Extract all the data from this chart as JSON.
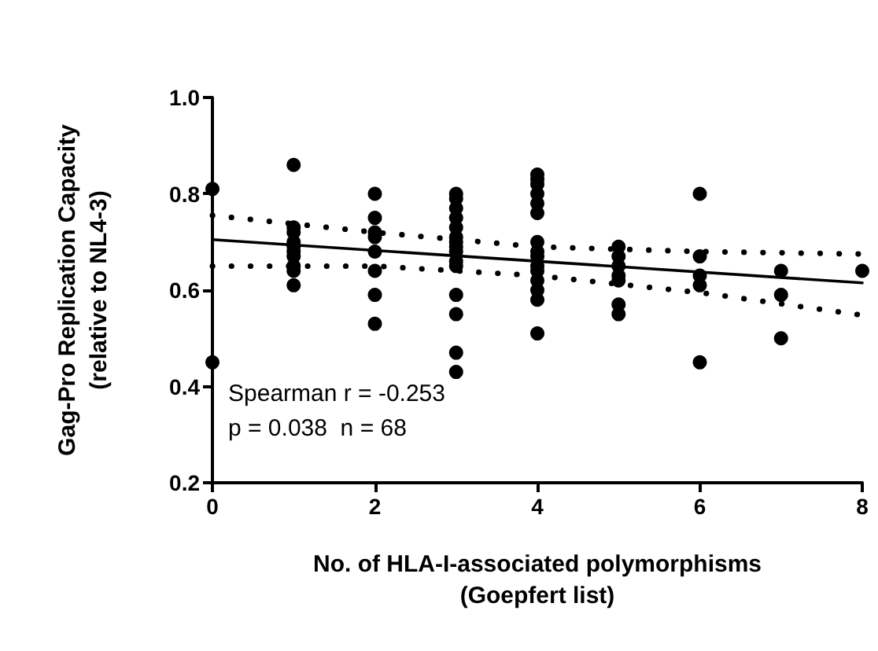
{
  "chart_data": {
    "type": "scatter",
    "xlabel": "No. of HLA-I-associated polymorphisms\n(Goepfert list)",
    "ylabel": "Gag-Pro Replication Capacity\n(relative to NL4-3)",
    "xlim": [
      0,
      8
    ],
    "xticks": [
      0,
      2,
      4,
      6,
      8
    ],
    "ylim": [
      0.2,
      1.0
    ],
    "yticks": [
      {
        "value": 0.2,
        "label": "0.2"
      },
      {
        "value": 0.4,
        "label": "0.4"
      },
      {
        "value": 0.6,
        "label": "0.6"
      },
      {
        "value": 0.8,
        "label": "0.8"
      },
      {
        "value": 1.0,
        "label": "1.0"
      }
    ],
    "grid": false,
    "annotations": [
      "Spearman r = -0.253",
      "p = 0.038  n = 68"
    ],
    "series": [
      {
        "color": "#000000",
        "marker": "circle",
        "x": [
          0,
          0,
          1,
          1,
          1,
          1,
          1,
          1,
          1,
          1,
          1,
          1,
          2,
          2,
          2,
          2,
          2,
          2,
          2,
          2,
          3,
          3,
          3,
          3,
          3,
          3,
          3,
          3,
          3,
          3,
          3,
          3,
          3,
          3,
          3,
          4,
          4,
          4,
          4,
          4,
          4,
          4,
          4,
          4,
          4,
          4,
          4,
          4,
          4,
          4,
          5,
          5,
          5,
          5,
          5,
          5,
          5,
          6,
          6,
          6,
          6,
          6,
          7,
          7,
          7,
          8
        ],
        "values": [
          0.81,
          0.45,
          0.86,
          0.73,
          0.72,
          0.7,
          0.69,
          0.68,
          0.67,
          0.65,
          0.64,
          0.61,
          0.8,
          0.75,
          0.72,
          0.71,
          0.68,
          0.64,
          0.59,
          0.53,
          0.8,
          0.79,
          0.77,
          0.75,
          0.73,
          0.71,
          0.7,
          0.69,
          0.68,
          0.66,
          0.65,
          0.59,
          0.55,
          0.47,
          0.43,
          0.84,
          0.83,
          0.82,
          0.8,
          0.78,
          0.76,
          0.7,
          0.68,
          0.67,
          0.65,
          0.64,
          0.62,
          0.6,
          0.58,
          0.51,
          0.69,
          0.67,
          0.65,
          0.63,
          0.62,
          0.57,
          0.55,
          0.8,
          0.67,
          0.63,
          0.61,
          0.45,
          0.64,
          0.59,
          0.5,
          0.64
        ]
      },
      {
        "type": "line",
        "color": "#000000",
        "line_style": "solid",
        "marker": "none",
        "x": [
          0,
          8
        ],
        "values": [
          0.705,
          0.615
        ]
      },
      {
        "type": "line",
        "color": "#000000",
        "line_style": "dotted",
        "marker": "none",
        "x": [
          0,
          2,
          4,
          6,
          8
        ],
        "values": [
          0.755,
          0.72,
          0.69,
          0.68,
          0.675
        ]
      },
      {
        "type": "line",
        "color": "#000000",
        "line_style": "dotted",
        "marker": "none",
        "x": [
          0,
          2,
          4,
          6,
          8
        ],
        "values": [
          0.65,
          0.65,
          0.63,
          0.595,
          0.548
        ]
      }
    ]
  }
}
